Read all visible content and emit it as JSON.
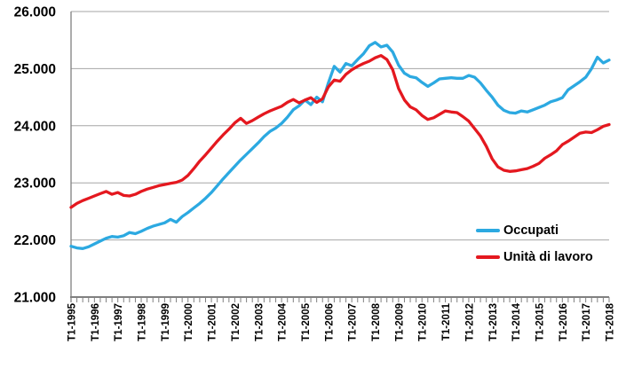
{
  "chart_data": {
    "type": "line",
    "title": "",
    "xlabel": "",
    "ylabel": "",
    "x_freq": "quarterly",
    "x_start": "T1-1995",
    "x_end": "T1-2018",
    "x_tick_labels": [
      "T1-1995",
      "T1-1996",
      "T1-1997",
      "T1-1998",
      "T1-1999",
      "T1-2000",
      "T1-2001",
      "T1-2002",
      "T1-2003",
      "T1-2004",
      "T1-2005",
      "T1-2006",
      "T1-2007",
      "T1-2008",
      "T1-2009",
      "T1-2010",
      "T1-2011",
      "T1-2012",
      "T1-2013",
      "T1-2014",
      "T1-2015",
      "T1-2016",
      "T1-2017",
      "T1-2018"
    ],
    "y_tick_labels": [
      "26.000",
      "25.000",
      "24.000",
      "23.000",
      "22.000",
      "21.000"
    ],
    "ylim": [
      21000,
      26000
    ],
    "y_step": 1000,
    "grid": "horizontal",
    "legend_position": "inside-right",
    "series": [
      {
        "name": "Occupati",
        "color": "#2CA9E1",
        "values": [
          21890,
          21860,
          21850,
          21880,
          21930,
          21980,
          22030,
          22060,
          22050,
          22075,
          22130,
          22110,
          22150,
          22200,
          22240,
          22270,
          22300,
          22360,
          22310,
          22410,
          22480,
          22560,
          22640,
          22730,
          22830,
          22950,
          23070,
          23180,
          23290,
          23400,
          23500,
          23600,
          23700,
          23810,
          23900,
          23960,
          24040,
          24150,
          24280,
          24350,
          24450,
          24370,
          24500,
          24420,
          24750,
          25040,
          24940,
          25090,
          25050,
          25160,
          25260,
          25400,
          25460,
          25380,
          25410,
          25290,
          25060,
          24920,
          24860,
          24840,
          24760,
          24690,
          24750,
          24820,
          24830,
          24840,
          24830,
          24830,
          24880,
          24850,
          24750,
          24620,
          24500,
          24360,
          24270,
          24230,
          24220,
          24260,
          24240,
          24280,
          24320,
          24360,
          24420,
          24450,
          24490,
          24630,
          24700,
          24770,
          24850,
          25000,
          25200,
          25100,
          25150
        ]
      },
      {
        "name": "Unità di lavoro",
        "color": "#E4181F",
        "values": [
          22570,
          22640,
          22690,
          22730,
          22770,
          22810,
          22850,
          22800,
          22830,
          22780,
          22770,
          22800,
          22850,
          22890,
          22920,
          22950,
          22970,
          22990,
          23010,
          23050,
          23130,
          23250,
          23380,
          23490,
          23610,
          23730,
          23840,
          23940,
          24050,
          24130,
          24040,
          24090,
          24150,
          24210,
          24260,
          24300,
          24340,
          24410,
          24460,
          24400,
          24450,
          24490,
          24410,
          24470,
          24680,
          24800,
          24780,
          24900,
          24980,
          25040,
          25090,
          25130,
          25190,
          25230,
          25160,
          24980,
          24650,
          24450,
          24330,
          24280,
          24180,
          24110,
          24140,
          24200,
          24260,
          24240,
          24230,
          24160,
          24080,
          23950,
          23820,
          23640,
          23420,
          23280,
          23220,
          23200,
          23210,
          23230,
          23250,
          23290,
          23340,
          23430,
          23490,
          23560,
          23670,
          23730,
          23800,
          23870,
          23890,
          23880,
          23930,
          23990,
          24020
        ]
      }
    ],
    "colors": {
      "gridline": "#A6A6A6",
      "axis": "#808080",
      "tick": "#808080",
      "label_text": "#000000",
      "background": "#FFFFFF"
    }
  }
}
